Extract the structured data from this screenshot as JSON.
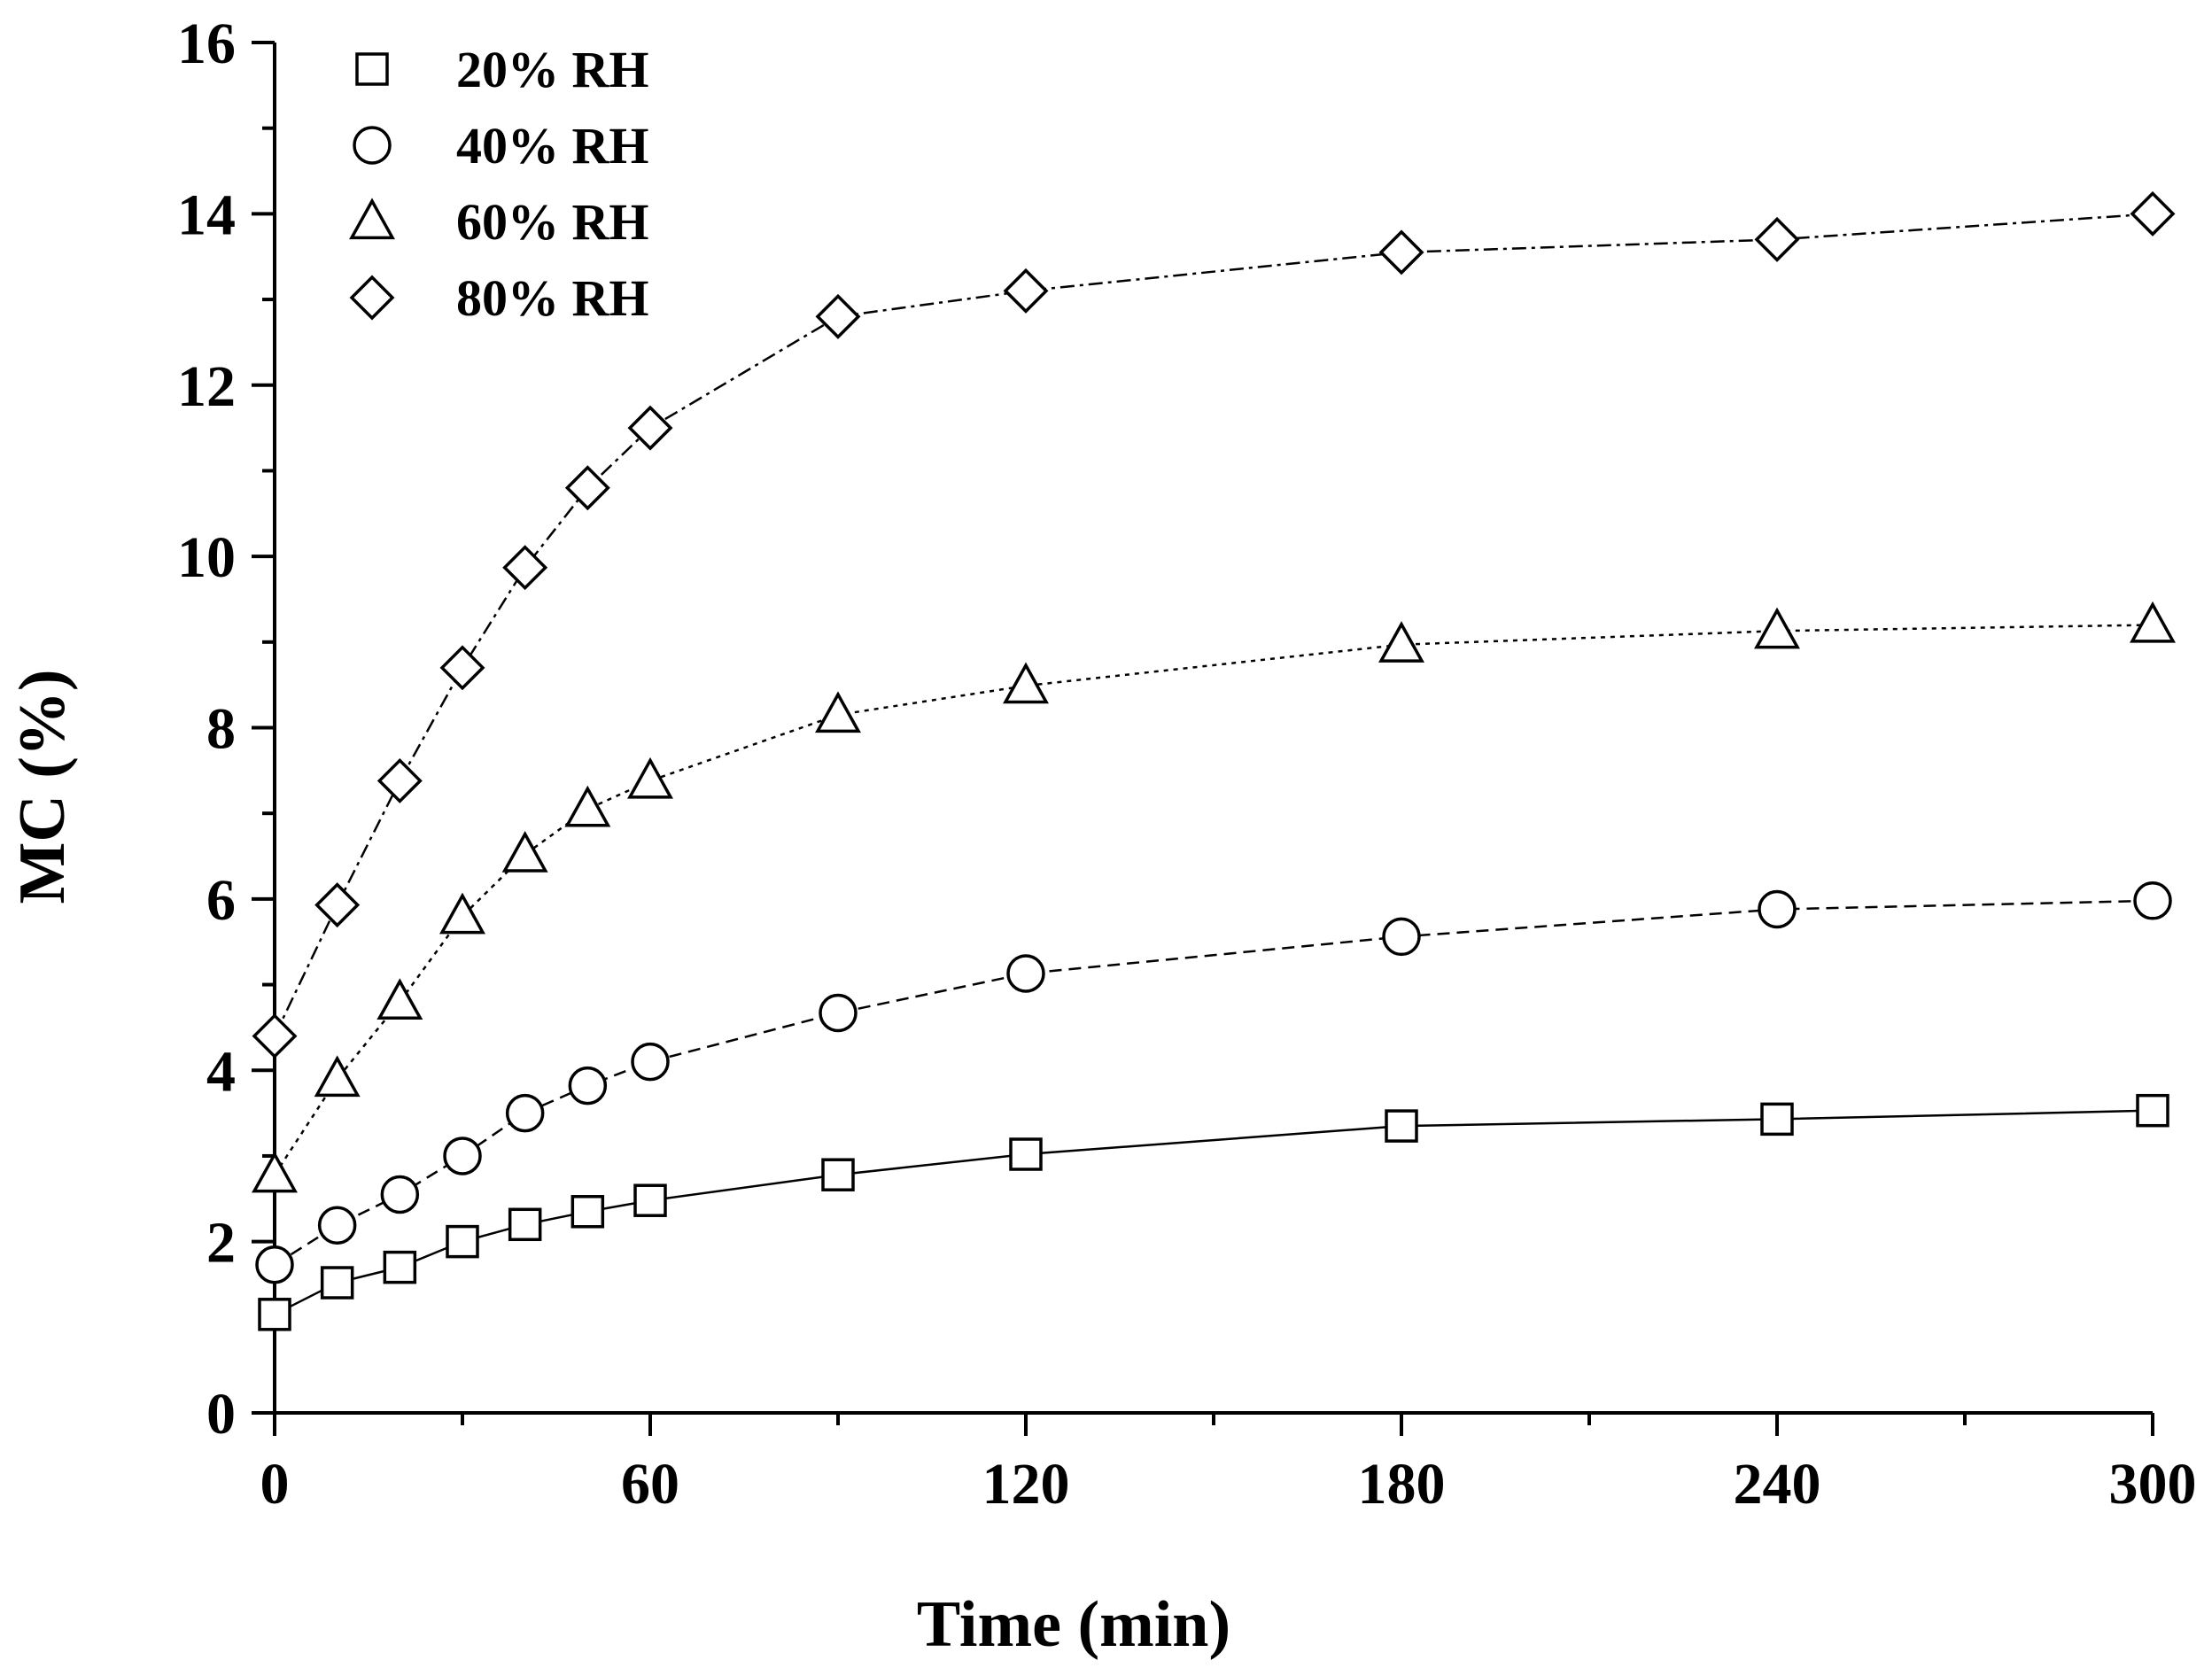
{
  "chart_data": {
    "type": "line",
    "title": "",
    "xlabel": "Time (min)",
    "ylabel": "MC (%)",
    "xlim": [
      0,
      300
    ],
    "ylim": [
      0,
      16
    ],
    "x_ticks": [
      0,
      60,
      120,
      180,
      240,
      300
    ],
    "y_ticks": [
      0,
      2,
      4,
      6,
      8,
      10,
      12,
      14,
      16
    ],
    "x_minor_step": 30,
    "y_minor_step": 1,
    "grid": false,
    "legend_position": "top-left",
    "x": [
      0,
      10,
      20,
      30,
      40,
      50,
      60,
      90,
      120,
      180,
      240,
      300
    ],
    "series": [
      {
        "name": "20% RH",
        "marker": "square",
        "dash": "solid",
        "values": [
          1.15,
          1.52,
          1.7,
          2.0,
          2.2,
          2.35,
          2.48,
          2.78,
          3.02,
          3.35,
          3.43,
          3.53
        ]
      },
      {
        "name": "40% RH",
        "marker": "circle",
        "dash": "dashed",
        "values": [
          1.73,
          2.19,
          2.55,
          3.0,
          3.5,
          3.82,
          4.1,
          4.67,
          5.13,
          5.56,
          5.88,
          5.98
        ]
      },
      {
        "name": "60% RH",
        "marker": "triangle",
        "dash": "dotted",
        "values": [
          2.78,
          3.9,
          4.8,
          5.8,
          6.52,
          7.05,
          7.38,
          8.15,
          8.49,
          8.97,
          9.13,
          9.2
        ]
      },
      {
        "name": "80% RH",
        "marker": "diamond",
        "dash": "dashdot",
        "values": [
          4.4,
          5.93,
          7.38,
          8.7,
          9.87,
          10.8,
          11.5,
          12.8,
          13.1,
          13.55,
          13.7,
          14.0
        ]
      }
    ]
  }
}
